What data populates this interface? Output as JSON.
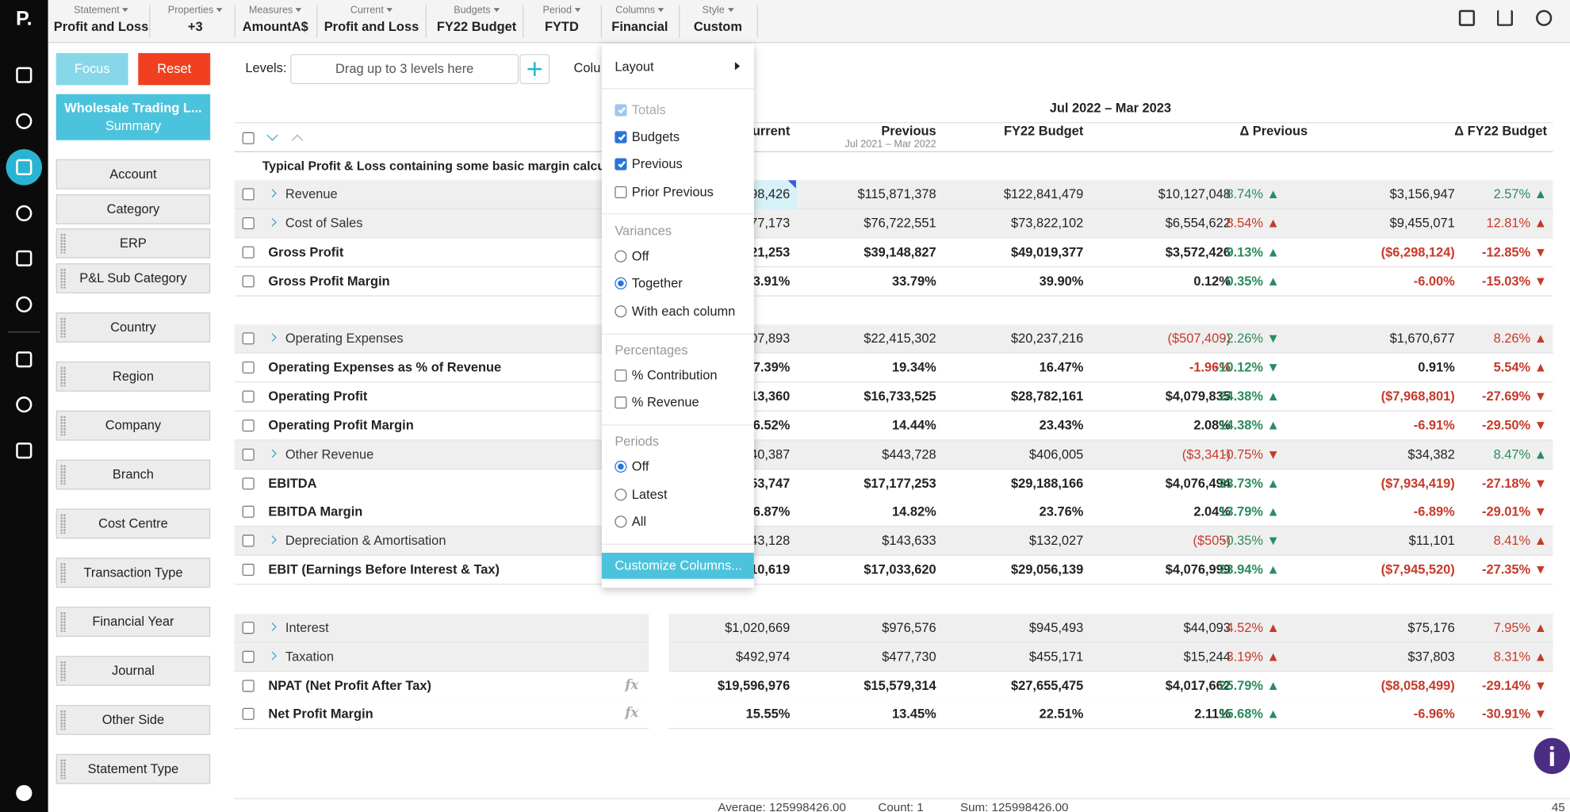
{
  "logo": "P.",
  "toolbar": [
    {
      "label": "Statement",
      "value": "Profit and Loss"
    },
    {
      "label": "Properties",
      "value": "+3"
    },
    {
      "label": "Measures",
      "value": "AmountA$"
    },
    {
      "label": "Current",
      "value": "Profit and Loss"
    },
    {
      "label": "Budgets",
      "value": "FY22 Budget"
    },
    {
      "label": "Period",
      "value": "FYTD"
    },
    {
      "label": "Columns",
      "value": "Financial"
    },
    {
      "label": "Style",
      "value": "Custom"
    }
  ],
  "sidebar": {
    "focus": "Focus",
    "reset": "Reset",
    "report": {
      "title": "Wholesale Trading L...",
      "subtitle": "Summary"
    },
    "dimensions": [
      "Account",
      "Category",
      "ERP",
      "P&L Sub Category",
      "Country",
      "Region",
      "Company",
      "Branch",
      "Cost Centre",
      "Transaction Type",
      "Financial Year",
      "Journal",
      "Other Side",
      "Statement Type"
    ]
  },
  "levels": {
    "label": "Levels:",
    "placeholder": "Drag up to 3 levels here",
    "columns_label": "Colu"
  },
  "table": {
    "period": "Jul 2022 – Mar 2023",
    "columns": [
      {
        "title": "Current"
      },
      {
        "title": "Previous",
        "subtitle": "Jul 2021 – Mar 2022"
      },
      {
        "title": "FY22 Budget"
      },
      {
        "title": "Δ Previous"
      },
      {
        "title": "Δ FY22 Budget"
      }
    ],
    "group_title": "Typical Profit & Loss containing some basic margin calculatio",
    "rows": [
      {
        "label": "Revenue",
        "bold": false,
        "expandable": true,
        "cells": [
          "98,426",
          "$115,871,378",
          "$122,841,479",
          "$10,127,048",
          "8.74% ▲",
          "$3,156,947",
          "2.57% ▲"
        ],
        "colors": [
          "#222",
          "#222",
          "#222",
          "#222",
          "#2a8c5c",
          "#222",
          "#2a8c5c"
        ]
      },
      {
        "label": "Cost of Sales",
        "bold": false,
        "expandable": true,
        "cells": [
          "77,173",
          "$76,722,551",
          "$73,822,102",
          "$6,554,622",
          "8.54% ▲",
          "$9,455,071",
          "12.81% ▲"
        ],
        "colors": [
          "#222",
          "#222",
          "#222",
          "#222",
          "#c63a2a",
          "#222",
          "#c63a2a"
        ]
      },
      {
        "label": "Gross Profit",
        "bold": true,
        "expandable": false,
        "cells": [
          "21,253",
          "$39,148,827",
          "$49,019,377",
          "$3,572,426",
          "9.13% ▲",
          "($6,298,124)",
          "-12.85% ▼"
        ],
        "colors": [
          "#222",
          "#222",
          "#222",
          "#222",
          "#2a8c5c",
          "#c63a2a",
          "#c63a2a"
        ]
      },
      {
        "label": "Gross Profit Margin",
        "bold": true,
        "expandable": false,
        "cells": [
          "3.91%",
          "33.79%",
          "39.90%",
          "0.12%",
          "0.35% ▲",
          "-6.00%",
          "-15.03% ▼"
        ],
        "colors": [
          "#222",
          "#222",
          "#222",
          "#222",
          "#2a8c5c",
          "#c63a2a",
          "#c63a2a"
        ]
      },
      {
        "label": "Operating Expenses",
        "bold": false,
        "expandable": true,
        "cells": [
          "07,893",
          "$22,415,302",
          "$20,237,216",
          "($507,409)",
          "-2.26% ▼",
          "$1,670,677",
          "8.26% ▲"
        ],
        "colors": [
          "#222",
          "#222",
          "#222",
          "#c63a2a",
          "#2a8c5c",
          "#222",
          "#c63a2a"
        ]
      },
      {
        "label": "Operating Expenses as % of Revenue",
        "bold": true,
        "expandable": false,
        "cells": [
          "7.39%",
          "19.34%",
          "16.47%",
          "-1.96%",
          "-10.12% ▼",
          "0.91%",
          "5.54% ▲"
        ],
        "colors": [
          "#222",
          "#222",
          "#222",
          "#c63a2a",
          "#2a8c5c",
          "#222",
          "#c63a2a"
        ]
      },
      {
        "label": "Operating Profit",
        "bold": true,
        "expandable": false,
        "cells": [
          "13,360",
          "$16,733,525",
          "$28,782,161",
          "$4,079,835",
          "24.38% ▲",
          "($7,968,801)",
          "-27.69% ▼"
        ],
        "colors": [
          "#222",
          "#222",
          "#222",
          "#222",
          "#2a8c5c",
          "#c63a2a",
          "#c63a2a"
        ]
      },
      {
        "label": "Operating Profit Margin",
        "bold": true,
        "expandable": false,
        "cells": [
          "6.52%",
          "14.44%",
          "23.43%",
          "2.08%",
          "14.38% ▲",
          "-6.91%",
          "-29.50% ▼"
        ],
        "colors": [
          "#222",
          "#222",
          "#222",
          "#222",
          "#2a8c5c",
          "#c63a2a",
          "#c63a2a"
        ]
      },
      {
        "label": "Other Revenue",
        "bold": false,
        "expandable": true,
        "cells": [
          "40,387",
          "$443,728",
          "$406,005",
          "($3,341)",
          "-0.75% ▼",
          "$34,382",
          "8.47% ▲"
        ],
        "colors": [
          "#222",
          "#222",
          "#222",
          "#c63a2a",
          "#c63a2a",
          "#222",
          "#2a8c5c"
        ]
      },
      {
        "label": "EBITDA",
        "bold": true,
        "expandable": false,
        "cells": [
          "53,747",
          "$17,177,253",
          "$29,188,166",
          "$4,076,494",
          "23.73% ▲",
          "($7,934,419)",
          "-27.18% ▼"
        ],
        "colors": [
          "#222",
          "#222",
          "#222",
          "#222",
          "#2a8c5c",
          "#c63a2a",
          "#c63a2a"
        ]
      },
      {
        "label": "EBITDA Margin",
        "bold": true,
        "expandable": false,
        "cells": [
          "6.87%",
          "14.82%",
          "23.76%",
          "2.04%",
          "13.79% ▲",
          "-6.89%",
          "-29.01% ▼"
        ],
        "colors": [
          "#222",
          "#222",
          "#222",
          "#222",
          "#2a8c5c",
          "#c63a2a",
          "#c63a2a"
        ]
      },
      {
        "label": "Depreciation & Amortisation",
        "bold": false,
        "expandable": true,
        "cells": [
          "43,128",
          "$143,633",
          "$132,027",
          "($505)",
          "-0.35% ▼",
          "$11,101",
          "8.41% ▲"
        ],
        "colors": [
          "#222",
          "#222",
          "#222",
          "#c63a2a",
          "#2a8c5c",
          "#222",
          "#c63a2a"
        ]
      },
      {
        "label": "EBIT (Earnings Before Interest & Tax)",
        "bold": true,
        "expandable": false,
        "cells": [
          "10,619",
          "$17,033,620",
          "$29,056,139",
          "$4,076,999",
          "23.94% ▲",
          "($7,945,520)",
          "-27.35% ▼"
        ],
        "colors": [
          "#222",
          "#222",
          "#222",
          "#222",
          "#2a8c5c",
          "#c63a2a",
          "#c63a2a"
        ]
      },
      {
        "label": "Interest",
        "bold": false,
        "expandable": true,
        "cells": [
          "$1,020,669",
          "$976,576",
          "$945,493",
          "$44,093",
          "4.52% ▲",
          "$75,176",
          "7.95% ▲"
        ],
        "colors": [
          "#222",
          "#222",
          "#222",
          "#222",
          "#c63a2a",
          "#222",
          "#c63a2a"
        ]
      },
      {
        "label": "Taxation",
        "bold": false,
        "expandable": true,
        "cells": [
          "$492,974",
          "$477,730",
          "$455,171",
          "$15,244",
          "3.19% ▲",
          "$37,803",
          "8.31% ▲"
        ],
        "colors": [
          "#222",
          "#222",
          "#222",
          "#222",
          "#c63a2a",
          "#222",
          "#c63a2a"
        ]
      },
      {
        "label": "NPAT (Net Profit After Tax)",
        "bold": true,
        "expandable": false,
        "formula": "fx",
        "cells": [
          "$19,596,976",
          "$15,579,314",
          "$27,655,475",
          "$4,017,662",
          "25.79% ▲",
          "($8,058,499)",
          "-29.14% ▼"
        ],
        "colors": [
          "#222",
          "#222",
          "#222",
          "#222",
          "#2a8c5c",
          "#c63a2a",
          "#c63a2a"
        ]
      },
      {
        "label": "Net Profit Margin",
        "bold": true,
        "expandable": false,
        "formula": "fx",
        "cells": [
          "15.55%",
          "13.45%",
          "22.51%",
          "2.11%",
          "15.68% ▲",
          "-6.96%",
          "-30.91% ▼"
        ],
        "colors": [
          "#222",
          "#222",
          "#222",
          "#222",
          "#2a8c5c",
          "#c63a2a",
          "#c63a2a"
        ]
      }
    ]
  },
  "menu": {
    "layout": "Layout",
    "sections": [
      {
        "control": "checkbox",
        "options": [
          {
            "label": "Totals",
            "checked": true,
            "disabled": true
          },
          {
            "label": "Budgets",
            "checked": true
          },
          {
            "label": "Previous",
            "checked": true
          },
          {
            "label": "Prior Previous",
            "checked": false
          }
        ]
      },
      {
        "heading": "Variances",
        "control": "radio",
        "options": [
          {
            "label": "Off",
            "checked": false
          },
          {
            "label": "Together",
            "checked": true
          },
          {
            "label": "With each column",
            "checked": false
          }
        ]
      },
      {
        "heading": "Percentages",
        "control": "checkbox",
        "options": [
          {
            "label": "% Contribution",
            "checked": false
          },
          {
            "label": "% Revenue",
            "checked": false
          }
        ]
      },
      {
        "heading": "Periods",
        "control": "radio",
        "options": [
          {
            "label": "Off",
            "checked": true
          },
          {
            "label": "Latest",
            "checked": false
          },
          {
            "label": "All",
            "checked": false
          }
        ]
      }
    ],
    "customize": "Customize Columns..."
  },
  "status": {
    "average": "Average: 125998426.00",
    "count": "Count: 1",
    "sum": "Sum: 125998426.00",
    "page": "45"
  }
}
